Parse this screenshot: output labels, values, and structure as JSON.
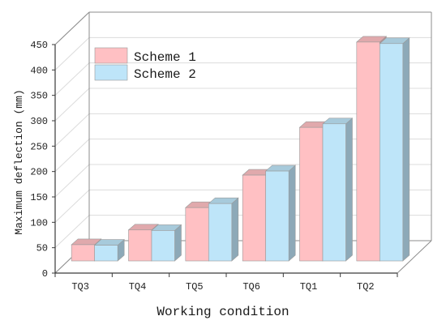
{
  "chart_data": {
    "type": "bar",
    "3d": true,
    "categories": [
      "TQ3",
      "TQ4",
      "TQ5",
      "TQ6",
      "TQ1",
      "TQ2"
    ],
    "series": [
      {
        "name": "Scheme 1",
        "color": "#FFC0C3",
        "values": [
          32,
          61,
          105,
          169,
          263,
          431
        ]
      },
      {
        "name": "Scheme 2",
        "color": "#BEE5F9",
        "values": [
          31,
          60,
          113,
          177,
          270,
          428
        ]
      }
    ],
    "xlabel": "Working condition",
    "ylabel": "Maximum deflection (mm)",
    "ylim": [
      0,
      450
    ],
    "yticks": [
      0,
      50,
      100,
      150,
      200,
      250,
      300,
      350,
      400,
      450
    ],
    "grid": true,
    "legend": "top-left"
  }
}
